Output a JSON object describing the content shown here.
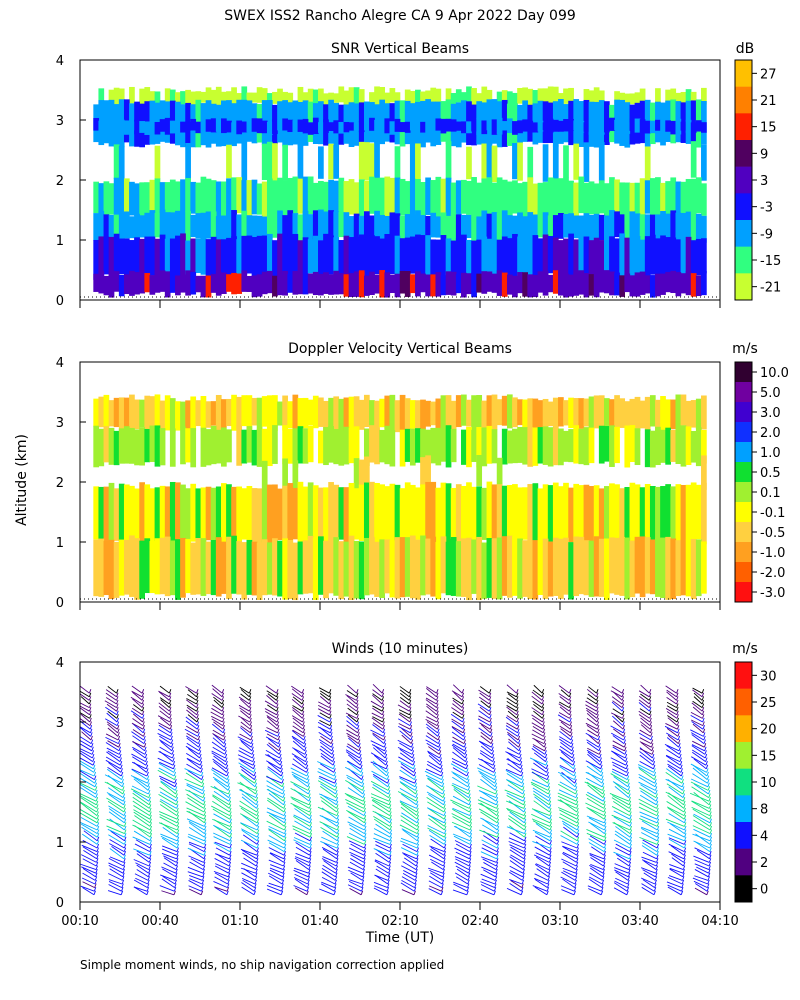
{
  "figure": {
    "title": "SWEX ISS2 Rancho Alegre CA   9 Apr 2022 Day 099",
    "ylabel": "Altitude (km)",
    "xlabel": "Time (UT)",
    "footnote": "Simple moment winds, no ship navigation correction applied",
    "x_ticks": [
      "00:10",
      "00:40",
      "01:10",
      "01:40",
      "02:10",
      "02:40",
      "03:10",
      "03:40",
      "04:10"
    ],
    "y_ticks": [
      "0",
      "1",
      "2",
      "3",
      "4"
    ]
  },
  "chart_data": [
    {
      "type": "heatmap",
      "title": "SNR Vertical Beams",
      "unit": "dB",
      "xlim_hours": [
        0.1667,
        4.1667
      ],
      "ylim_km": [
        0,
        4
      ],
      "colorbar": {
        "labels": [
          "27",
          "21",
          "15",
          "9",
          "3",
          "-3",
          "-9",
          "-15",
          "-21"
        ],
        "colors": [
          "#ffc000",
          "#ff8000",
          "#ff2000",
          "#500060",
          "#5000c0",
          "#1010ff",
          "#00a0ff",
          "#30ff80",
          "#c8ff30"
        ]
      },
      "layers_km": [
        {
          "range": [
            0.1,
            0.4
          ],
          "level": "3 to 9"
        },
        {
          "range": [
            0.4,
            1.0
          ],
          "level": "-3 to 3"
        },
        {
          "range": [
            1.0,
            1.4
          ],
          "level": "-9 to -3"
        },
        {
          "range": [
            1.4,
            2.0
          ],
          "level": "-15 to -9"
        },
        {
          "range": [
            2.0,
            2.6
          ],
          "level": "no data (white)"
        },
        {
          "range": [
            2.6,
            3.3
          ],
          "level": "-9 to -3"
        },
        {
          "range": [
            3.3,
            3.5
          ],
          "level": "-21 to -15"
        }
      ]
    },
    {
      "type": "heatmap",
      "title": "Doppler Velocity Vertical Beams",
      "unit": "m/s",
      "xlim_hours": [
        0.1667,
        4.1667
      ],
      "ylim_km": [
        0,
        4
      ],
      "colorbar": {
        "labels": [
          "10.0",
          "5.0",
          "3.0",
          "2.0",
          "1.0",
          "0.5",
          "0.1",
          "-0.1",
          "-0.5",
          "-1.0",
          "-2.0",
          "-3.0"
        ],
        "colors": [
          "#300030",
          "#7000a0",
          "#4000d0",
          "#1030ff",
          "#00a0ff",
          "#10e030",
          "#a0f030",
          "#ffff00",
          "#ffd040",
          "#ffa020",
          "#ff6000",
          "#ff1010"
        ]
      },
      "layers_km": [
        {
          "range": [
            0.1,
            1.9
          ],
          "level": "-0.5 to -0.1"
        },
        {
          "range": [
            1.9,
            2.4
          ],
          "level": "no data (white)"
        },
        {
          "range": [
            2.4,
            3.4
          ],
          "level": "0.1 to -0.1"
        }
      ]
    },
    {
      "type": "scatter",
      "title": "Winds (10 minutes)",
      "unit": "m/s",
      "xlim_hours": [
        0.1667,
        4.1667
      ],
      "ylim_km": [
        0,
        4
      ],
      "colorbar": {
        "labels": [
          "30",
          "25",
          "20",
          "15",
          "10",
          "8",
          "4",
          "2",
          "0"
        ],
        "colors": [
          "#ff1010",
          "#ff6000",
          "#ffb000",
          "#a0f030",
          "#10e080",
          "#00b0ff",
          "#1010ff",
          "#500080",
          "#000000"
        ]
      },
      "profile_times_hours": [
        0.25,
        0.42,
        0.58,
        0.75,
        0.92,
        1.08,
        1.25,
        1.42,
        1.58,
        1.75,
        1.92,
        2.08,
        2.25,
        2.42,
        2.58,
        2.75,
        2.92,
        3.08,
        3.25,
        3.42,
        3.58,
        3.75,
        3.92,
        4.08
      ],
      "speed_profile": [
        {
          "alt_km": 0.2,
          "speed_ms": 5
        },
        {
          "alt_km": 0.6,
          "speed_ms": 6
        },
        {
          "alt_km": 1.0,
          "speed_ms": 9
        },
        {
          "alt_km": 1.5,
          "speed_ms": 11
        },
        {
          "alt_km": 2.0,
          "speed_ms": 9
        },
        {
          "alt_km": 2.5,
          "speed_ms": 5
        },
        {
          "alt_km": 3.0,
          "speed_ms": 3
        },
        {
          "alt_km": 3.5,
          "speed_ms": 2
        }
      ]
    }
  ]
}
